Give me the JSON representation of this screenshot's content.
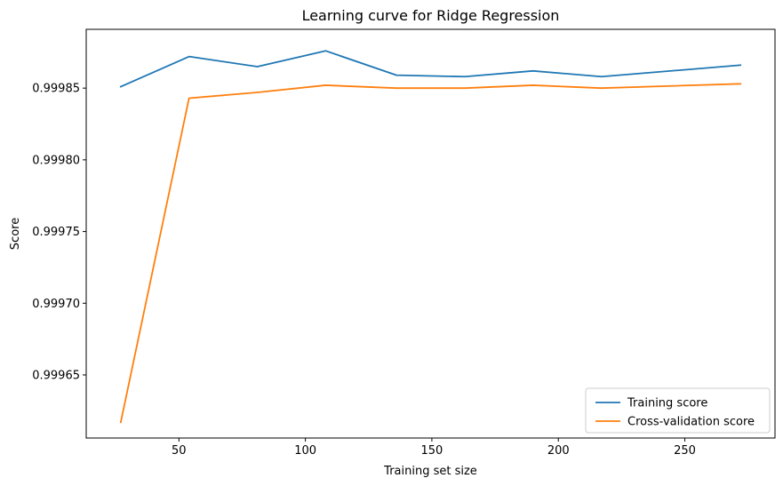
{
  "chart_data": {
    "type": "line",
    "title": "Learning curve for Ridge Regression",
    "xlabel": "Training set size",
    "ylabel": "Score",
    "xlim": [
      13.35,
      285.65
    ],
    "ylim": [
      0.999606,
      0.999891
    ],
    "xticks": [
      50,
      100,
      150,
      200,
      250
    ],
    "xtick_labels": [
      "50",
      "100",
      "150",
      "200",
      "250"
    ],
    "yticks": [
      0.99965,
      0.9997,
      0.99975,
      0.9998,
      0.99985
    ],
    "ytick_labels": [
      "0.99965",
      "0.99970",
      "0.99975",
      "0.99980",
      "0.99985"
    ],
    "grid": false,
    "legend_position": "lower right",
    "x": [
      27,
      54,
      81,
      108,
      136,
      163,
      190,
      217,
      272
    ],
    "series": [
      {
        "name": "Training score",
        "color": "#1f77b4",
        "values": [
          0.999851,
          0.999872,
          0.999865,
          0.999876,
          0.999859,
          0.999858,
          0.999862,
          0.999858,
          0.999866
        ]
      },
      {
        "name": "Cross-validation score",
        "color": "#ff7f0e",
        "values": [
          0.999617,
          0.999843,
          0.999847,
          0.999852,
          0.99985,
          0.99985,
          0.999852,
          0.99985,
          0.999853
        ]
      }
    ]
  }
}
